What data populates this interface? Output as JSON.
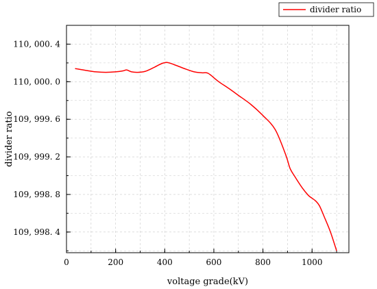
{
  "chart_data": {
    "type": "line",
    "title": "",
    "xlabel": "voltage grade(kV)",
    "ylabel": "divider ratio",
    "xlim": [
      0,
      1150
    ],
    "ylim": [
      109998.18,
      110000.6
    ],
    "x_ticks": [
      0,
      200,
      400,
      600,
      800,
      1000
    ],
    "x_tick_labels": [
      "0",
      "200",
      "400",
      "600",
      "800",
      "1000"
    ],
    "y_ticks": [
      109998.4,
      109998.8,
      109999.2,
      109999.6,
      110000.0,
      110000.4
    ],
    "y_tick_labels": [
      "109, 998. 4",
      "109, 998. 8",
      "109, 999. 2",
      "109, 999. 6",
      "110, 000. 0",
      "110, 000. 4"
    ],
    "grid": true,
    "legend_position": "top-right",
    "series": [
      {
        "name": "divider ratio",
        "color": "#ff0000",
        "x": [
          35,
          80,
          120,
          160,
          200,
          230,
          245,
          265,
          290,
          320,
          355,
          385,
          410,
          440,
          480,
          520,
          550,
          570,
          585,
          620,
          660,
          700,
          750,
          800,
          850,
          893,
          910,
          930,
          960,
          985,
          1000,
          1015,
          1030,
          1050,
          1075,
          1100
        ],
        "values": [
          110000.14,
          110000.12,
          110000.105,
          110000.1,
          110000.105,
          110000.115,
          110000.125,
          110000.105,
          110000.1,
          110000.11,
          110000.15,
          110000.19,
          110000.205,
          110000.18,
          110000.14,
          110000.105,
          110000.095,
          110000.095,
          110000.075,
          110000.0,
          109999.93,
          109999.855,
          109999.76,
          109999.64,
          109999.49,
          109999.22,
          109999.08,
          109998.99,
          109998.87,
          109998.79,
          109998.76,
          109998.73,
          109998.68,
          109998.56,
          109998.4,
          109998.2
        ]
      }
    ]
  },
  "colors": {
    "line": "#ff0000",
    "axis": "#000000",
    "grid": "#c8c8c8"
  }
}
